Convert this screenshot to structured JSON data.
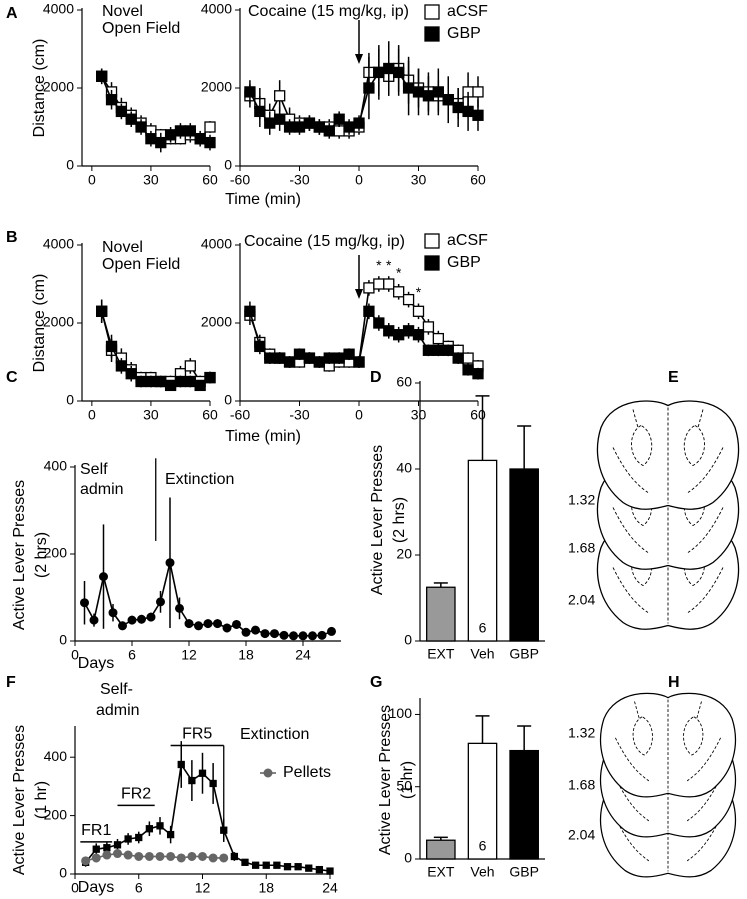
{
  "chart_data": [
    {
      "type": "line",
      "panel": "A",
      "title": [
        "Novel",
        "Open Field"
      ],
      "ylabel": [
        "Distance (cm)"
      ],
      "x": [
        5,
        10,
        15,
        20,
        25,
        30,
        35,
        40,
        45,
        50,
        55,
        60
      ],
      "xlim": [
        -5,
        60
      ],
      "xticks": [
        0,
        30,
        60
      ],
      "ylim": [
        0,
        4000
      ],
      "yticks": [
        0,
        2000,
        4000
      ],
      "series": [
        {
          "color": "#000000",
          "marker": "open-square",
          "values": [
            2300,
            1900,
            1500,
            1300,
            1100,
            900,
            800,
            700,
            700,
            800,
            700,
            1000
          ],
          "errors": [
            200,
            250,
            250,
            200,
            200,
            200,
            150,
            150,
            150,
            200,
            150,
            150
          ]
        },
        {
          "color": "#000000",
          "marker": "square",
          "values": [
            2300,
            1700,
            1400,
            1200,
            1000,
            700,
            600,
            800,
            900,
            900,
            700,
            600
          ],
          "errors": [
            200,
            250,
            200,
            200,
            200,
            200,
            250,
            200,
            200,
            200,
            200,
            200
          ]
        }
      ]
    },
    {
      "type": "line",
      "title": [
        "Cocaine (15 mg/kg, ip)"
      ],
      "xlabel": "Time (min)",
      "legend": true,
      "arrow_x": 0,
      "x": [
        -55,
        -50,
        -45,
        -40,
        -35,
        -30,
        -25,
        -20,
        -15,
        -10,
        -5,
        0,
        5,
        10,
        15,
        20,
        25,
        30,
        35,
        40,
        45,
        50,
        55,
        60
      ],
      "xlim": [
        -60,
        60
      ],
      "xticks": [
        -60,
        -30,
        0,
        30,
        60
      ],
      "ylim": [
        0,
        4000
      ],
      "yticks": [
        0,
        2000,
        4000
      ],
      "series": [
        {
          "name": "aCSF",
          "color": "#000000",
          "marker": "open-square",
          "values": [
            1800,
            1600,
            1300,
            1800,
            1200,
            1100,
            1100,
            1000,
            1000,
            900,
            900,
            1000,
            2400,
            2400,
            2300,
            2500,
            2200,
            2000,
            1900,
            1800,
            1700,
            1600,
            1900,
            1900
          ],
          "errors": [
            300,
            400,
            300,
            400,
            300,
            200,
            200,
            200,
            200,
            200,
            200,
            200,
            500,
            600,
            500,
            600,
            600,
            500,
            500,
            400,
            400,
            400,
            500,
            400
          ]
        },
        {
          "name": "GBP",
          "color": "#000000",
          "marker": "square",
          "values": [
            1900,
            1400,
            1100,
            1200,
            1000,
            1000,
            1100,
            1000,
            900,
            1200,
            1000,
            1100,
            2000,
            2400,
            2500,
            2400,
            2000,
            1900,
            1800,
            1900,
            1700,
            1500,
            1400,
            1300
          ],
          "errors": [
            300,
            400,
            300,
            300,
            200,
            200,
            200,
            200,
            200,
            200,
            200,
            200,
            800,
            700,
            700,
            600,
            700,
            600,
            500,
            600,
            600,
            500,
            500,
            400
          ]
        }
      ]
    },
    {
      "type": "line",
      "panel": "B",
      "title": [
        "Novel",
        "Open Field"
      ],
      "ylabel": [
        "Distance (cm)"
      ],
      "x": [
        5,
        10,
        15,
        20,
        25,
        30,
        35,
        40,
        45,
        50,
        55,
        60
      ],
      "xlim": [
        -5,
        60
      ],
      "xticks": [
        0,
        30,
        60
      ],
      "ylim": [
        0,
        4000
      ],
      "yticks": [
        0,
        2000,
        4000
      ],
      "series": [
        {
          "color": "#000000",
          "marker": "open-square",
          "values": [
            2300,
            1300,
            1100,
            800,
            600,
            600,
            500,
            500,
            700,
            900,
            500,
            600
          ],
          "errors": [
            300,
            300,
            250,
            200,
            150,
            150,
            150,
            150,
            200,
            200,
            150,
            150
          ]
        },
        {
          "color": "#000000",
          "marker": "square",
          "values": [
            2300,
            1400,
            900,
            700,
            500,
            500,
            500,
            400,
            500,
            500,
            400,
            600
          ],
          "errors": [
            300,
            300,
            200,
            200,
            150,
            150,
            100,
            100,
            150,
            150,
            100,
            150
          ]
        }
      ]
    },
    {
      "type": "line",
      "title": [
        "Cocaine (15 mg/kg, ip)"
      ],
      "xlabel": "Time (min)",
      "legend": true,
      "arrow_x": 0,
      "significance": {
        "label": "*",
        "x": [
          10,
          15,
          20,
          30
        ]
      },
      "x": [
        -55,
        -50,
        -45,
        -40,
        -35,
        -30,
        -25,
        -20,
        -15,
        -10,
        -5,
        0,
        5,
        10,
        15,
        20,
        25,
        30,
        35,
        40,
        45,
        50,
        55,
        60
      ],
      "xlim": [
        -60,
        60
      ],
      "xticks": [
        -60,
        -30,
        0,
        30,
        60
      ],
      "ylim": [
        0,
        4000
      ],
      "yticks": [
        0,
        2000,
        4000
      ],
      "series": [
        {
          "name": "aCSF",
          "color": "#000000",
          "marker": "open-square",
          "values": [
            2200,
            1500,
            1200,
            1100,
            1000,
            1000,
            1100,
            1000,
            900,
            1000,
            1000,
            1000,
            2900,
            3000,
            3000,
            2800,
            2600,
            2300,
            1900,
            1600,
            1400,
            1300,
            1100,
            900
          ],
          "errors": [
            250,
            200,
            150,
            150,
            150,
            150,
            150,
            150,
            150,
            150,
            150,
            150,
            200,
            200,
            200,
            200,
            200,
            200,
            200,
            200,
            150,
            150,
            150,
            150
          ]
        },
        {
          "name": "GBP",
          "color": "#000000",
          "marker": "square",
          "values": [
            2300,
            1400,
            1100,
            1100,
            1000,
            1200,
            1100,
            1000,
            1100,
            1100,
            1200,
            1000,
            2300,
            2000,
            1800,
            1700,
            1800,
            1700,
            1300,
            1300,
            1300,
            1100,
            800,
            700
          ],
          "errors": [
            250,
            200,
            150,
            150,
            150,
            150,
            150,
            150,
            150,
            150,
            150,
            150,
            200,
            200,
            200,
            200,
            200,
            200,
            150,
            150,
            150,
            150,
            150,
            150
          ]
        }
      ]
    },
    {
      "type": "line",
      "panel": "C",
      "ylabel": [
        "Active Lever Presses",
        "(2 hrs)"
      ],
      "xlabel": "Days",
      "phase_labels": [
        [
          "Self",
          "admin"
        ],
        [
          "Extinction"
        ]
      ],
      "phase_boundary": 8.5,
      "x": [
        1,
        2,
        3,
        4,
        5,
        6,
        7,
        8,
        9,
        10,
        11,
        12,
        13,
        14,
        15,
        16,
        17,
        18,
        19,
        20,
        21,
        22,
        23,
        24,
        25,
        26,
        27
      ],
      "xlim": [
        0,
        28
      ],
      "xticks": [
        0,
        6,
        12,
        18,
        24
      ],
      "ylim": [
        0,
        400
      ],
      "yticks": [
        0,
        200,
        400
      ],
      "series": [
        {
          "color": "#000000",
          "marker": "circle",
          "values": [
            88,
            48,
            148,
            65,
            35,
            48,
            50,
            55,
            90,
            180,
            75,
            40,
            35,
            40,
            40,
            30,
            38,
            20,
            25,
            17,
            17,
            13,
            12,
            12,
            12,
            13,
            22
          ],
          "errors": [
            50,
            15,
            120,
            20,
            10,
            10,
            10,
            10,
            25,
            150,
            25,
            10,
            10,
            10,
            10,
            10,
            10,
            8,
            8,
            6,
            6,
            5,
            5,
            5,
            5,
            5,
            6
          ]
        }
      ]
    },
    {
      "type": "bar",
      "panel": "D",
      "ylabel": [
        "Active Lever Presses",
        "(2 hrs)"
      ],
      "categories": [
        "EXT",
        "Veh",
        "GBP"
      ],
      "values": [
        12.5,
        42,
        40
      ],
      "errors": [
        1,
        15,
        10
      ],
      "colors": [
        "#999999",
        "#ffffff",
        "#000000"
      ],
      "n_labels": [
        null,
        "6",
        null
      ],
      "ylim": [
        0,
        60
      ],
      "yticks": [
        0,
        20,
        40,
        60
      ]
    },
    {
      "type": "line",
      "panel": "F",
      "ylabel": [
        "Active Lever Presses",
        "(1 hr)"
      ],
      "xlabel": "Days",
      "legend": true,
      "phase_labels": [
        [
          "Self-",
          "admin"
        ],
        [
          "Extinction"
        ]
      ],
      "phase_boundary": 14,
      "phases": [
        {
          "label": "FR1",
          "days": [
            0.5,
            3.5
          ]
        },
        {
          "label": "FR2",
          "days": [
            4,
            7.5
          ]
        },
        {
          "label": "FR5",
          "days": [
            9,
            14
          ]
        }
      ],
      "x": [
        1,
        2,
        3,
        4,
        5,
        6,
        7,
        8,
        9,
        10,
        11,
        12,
        13,
        14,
        15,
        16,
        17,
        18,
        19,
        20,
        21,
        22,
        23,
        24
      ],
      "xlim": [
        0,
        24
      ],
      "xticks": [
        0,
        6,
        12,
        18,
        24
      ],
      "ylim": [
        0,
        500
      ],
      "yticks": [
        0,
        200,
        400
      ],
      "series": [
        {
          "color": "#000000",
          "marker": "small-square",
          "values": [
            40,
            85,
            90,
            100,
            120,
            125,
            155,
            165,
            135,
            375,
            320,
            345,
            310,
            150,
            60,
            40,
            30,
            30,
            30,
            25,
            25,
            20,
            15,
            10
          ],
          "errors": [
            15,
            20,
            20,
            20,
            20,
            20,
            25,
            30,
            30,
            80,
            70,
            70,
            70,
            40,
            15,
            10,
            10,
            8,
            8,
            6,
            6,
            5,
            5,
            5
          ]
        },
        {
          "name": "Pellets",
          "color": "#666666",
          "marker": "circle",
          "x": [
            1,
            2,
            3,
            4,
            5,
            6,
            7,
            8,
            9,
            10,
            11,
            12,
            13,
            14
          ],
          "values": [
            45,
            55,
            65,
            70,
            65,
            60,
            60,
            60,
            60,
            55,
            60,
            60,
            55,
            55
          ],
          "errors": [
            10,
            15,
            10,
            8,
            8,
            8,
            8,
            8,
            8,
            8,
            15,
            8,
            8,
            8
          ]
        }
      ]
    },
    {
      "type": "bar",
      "panel": "G",
      "ylabel": [
        "Active Lever Presses",
        "(1 hr)"
      ],
      "categories": [
        "EXT",
        "Veh",
        "GBP"
      ],
      "values": [
        13,
        80,
        75
      ],
      "errors": [
        2,
        19,
        17
      ],
      "colors": [
        "#999999",
        "#ffffff",
        "#000000"
      ],
      "n_labels": [
        null,
        "6",
        null
      ],
      "ylim": [
        0,
        110
      ],
      "yticks": [
        0,
        50,
        100
      ]
    }
  ],
  "sections": [
    {
      "panel": "E",
      "levels": [
        "1.32",
        "1.68",
        "2.04"
      ]
    },
    {
      "panel": "H",
      "levels": [
        "1.32",
        "1.68",
        "2.04"
      ]
    }
  ]
}
